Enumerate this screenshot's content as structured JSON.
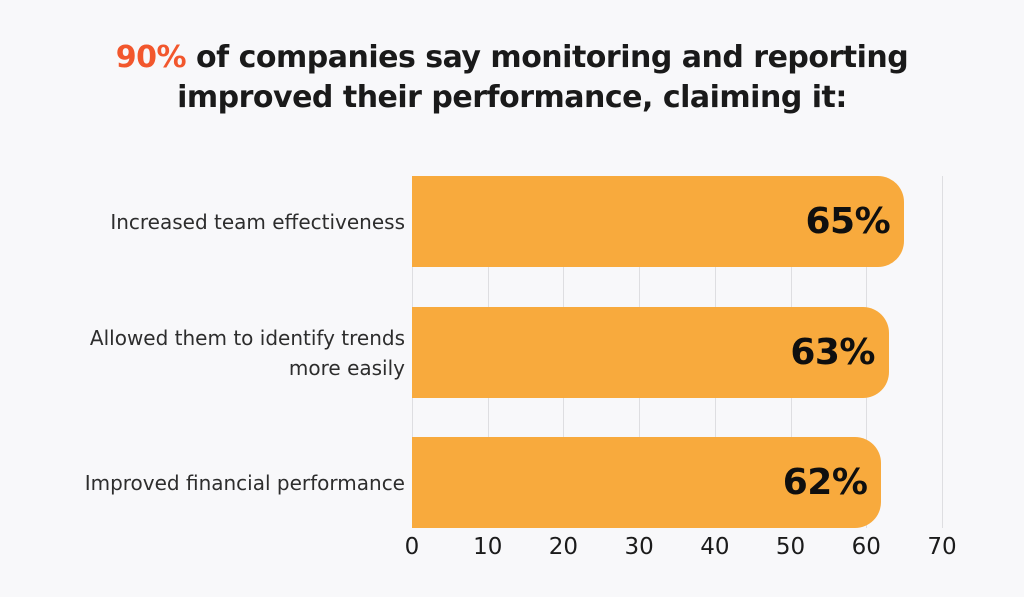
{
  "page": {
    "background": "#F8F8FA"
  },
  "title": {
    "highlight": "90%",
    "line1_rest": " of companies say monitoring and reporting",
    "line2": "improved their performance, claiming it:",
    "highlight_color": "#F2572D",
    "text_color": "#1A1A1A"
  },
  "chart_data": {
    "type": "bar",
    "orientation": "horizontal",
    "title": "90% of companies say monitoring and reporting improved their performance, claiming it:",
    "categories": [
      "Increased team effectiveness",
      "Allowed them to identify trends more easily",
      "Improved financial performance"
    ],
    "category_lines": [
      [
        "Increased team effectiveness",
        ""
      ],
      [
        "Allowed them to identify trends",
        "more easily"
      ],
      [
        "Improved financial performance",
        ""
      ]
    ],
    "values": [
      65,
      63,
      62
    ],
    "value_labels": [
      "65%",
      "63%",
      "62%"
    ],
    "xticks": [
      "0",
      "10",
      "20",
      "30",
      "40",
      "50",
      "60",
      "70"
    ],
    "xlim": [
      0,
      70
    ],
    "xlabel": "",
    "ylabel": "",
    "grid": true,
    "gridline_color": "#DEDEE1",
    "legend": false,
    "bar_color": "#F8AA3D",
    "value_label_color": "#0F0F0F",
    "category_label_color": "#2D2D2D",
    "tick_label_color": "#1B1B1B"
  }
}
